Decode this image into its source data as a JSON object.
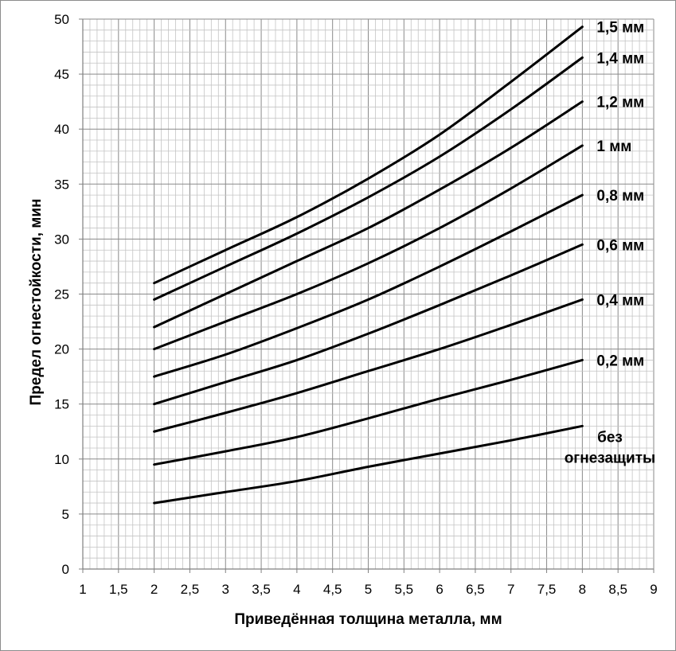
{
  "chart_data": {
    "type": "line",
    "xlabel": "Приведённая толщина металла, мм",
    "ylabel": "Предел огнестойкости, мин",
    "xlim": [
      1,
      9
    ],
    "ylim": [
      0,
      50
    ],
    "x_ticks": [
      "1",
      "1,5",
      "2",
      "2,5",
      "3",
      "3,5",
      "4",
      "4,5",
      "5",
      "5,5",
      "6",
      "6,5",
      "7",
      "7,5",
      "8",
      "8,5",
      "9"
    ],
    "y_ticks": [
      "0",
      "5",
      "10",
      "15",
      "20",
      "25",
      "30",
      "35",
      "40",
      "45",
      "50"
    ],
    "grid": true,
    "x": [
      2,
      3,
      4,
      5,
      6,
      7,
      8
    ],
    "series": [
      {
        "name": "1,5 мм",
        "values": [
          26,
          29,
          32,
          35.5,
          39.5,
          44.3,
          49.3
        ]
      },
      {
        "name": "1,4 мм",
        "values": [
          24.5,
          27.5,
          30.5,
          33.8,
          37.5,
          41.8,
          46.5
        ]
      },
      {
        "name": "1,2 мм",
        "values": [
          22,
          25,
          28,
          31,
          34.5,
          38.3,
          42.5
        ]
      },
      {
        "name": "1 мм",
        "values": [
          20,
          22.5,
          25,
          27.8,
          31,
          34.6,
          38.5
        ]
      },
      {
        "name": "0,8 мм",
        "values": [
          17.5,
          19.5,
          21.9,
          24.5,
          27.5,
          30.7,
          34
        ]
      },
      {
        "name": "0,6 мм",
        "values": [
          15,
          17,
          19,
          21.4,
          24,
          26.7,
          29.5
        ]
      },
      {
        "name": "0,4 мм",
        "values": [
          12.5,
          14.2,
          16,
          18,
          20,
          22.2,
          24.5
        ]
      },
      {
        "name": "0,2 мм",
        "values": [
          9.5,
          10.7,
          12,
          13.7,
          15.5,
          17.2,
          19
        ]
      },
      {
        "name": "без огнезащиты",
        "label_lines": [
          "без",
          "огнезащиты"
        ],
        "values": [
          6,
          7,
          8,
          9.3,
          10.5,
          11.7,
          13
        ]
      }
    ]
  }
}
